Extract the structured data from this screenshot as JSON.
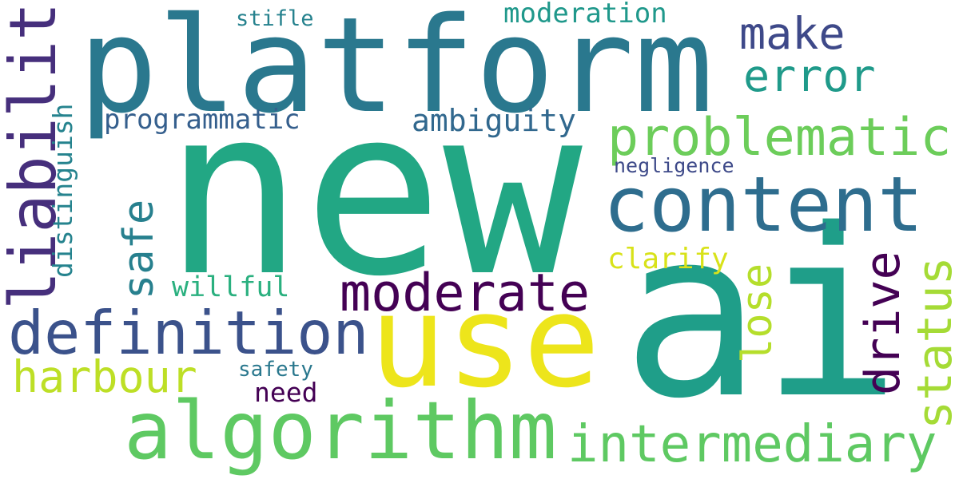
{
  "words": [
    {
      "text": "new",
      "color": "#22a784"
    },
    {
      "text": "ai",
      "color": "#1f9e89"
    },
    {
      "text": "platform",
      "color": "#2a788e"
    },
    {
      "text": "use",
      "color": "#ede51b"
    },
    {
      "text": "content",
      "color": "#2e6d8e"
    },
    {
      "text": "algorithm",
      "color": "#5ec962"
    },
    {
      "text": "problematic",
      "color": "#6ccd5a"
    },
    {
      "text": "liability",
      "color": "#462f7c"
    },
    {
      "text": "intermediary",
      "color": "#5ec962"
    },
    {
      "text": "definition",
      "color": "#3b528b"
    },
    {
      "text": "moderate",
      "color": "#440154"
    },
    {
      "text": "status",
      "color": "#a5db36"
    },
    {
      "text": "harbour",
      "color": "#bddf26"
    },
    {
      "text": "drive",
      "color": "#440154"
    },
    {
      "text": "make",
      "color": "#3e4989"
    },
    {
      "text": "error",
      "color": "#1f9a8a"
    },
    {
      "text": "lose",
      "color": "#b5de2b"
    },
    {
      "text": "safe",
      "color": "#27808e"
    },
    {
      "text": "ambiguity",
      "color": "#31688e"
    },
    {
      "text": "programmatic",
      "color": "#355f8d"
    },
    {
      "text": "distinguish",
      "color": "#25838e"
    },
    {
      "text": "clarify",
      "color": "#d8e219"
    },
    {
      "text": "willful",
      "color": "#2ab07f"
    },
    {
      "text": "moderation",
      "color": "#1f988b"
    },
    {
      "text": "negligence",
      "color": "#3e4a89"
    },
    {
      "text": "need",
      "color": "#440154"
    },
    {
      "text": "safety",
      "color": "#2a788e"
    },
    {
      "text": "stifle",
      "color": "#26828e"
    }
  ]
}
